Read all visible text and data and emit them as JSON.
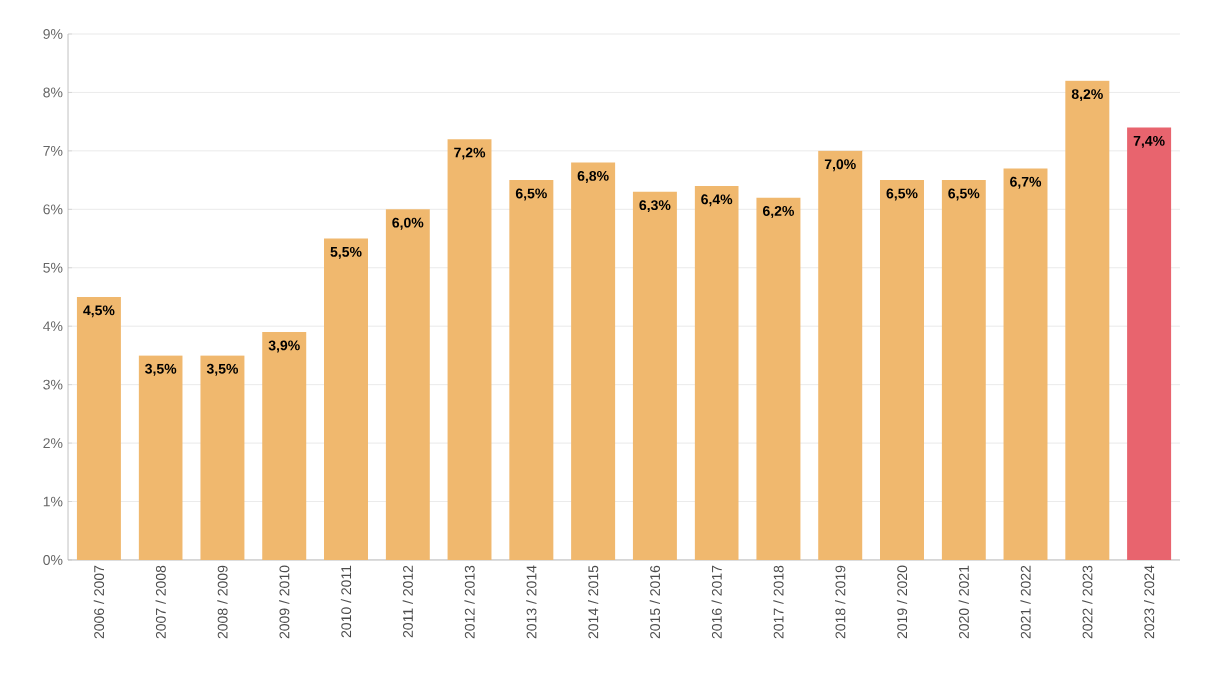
{
  "chart_data": {
    "type": "bar",
    "categories": [
      "2006 / 2007",
      "2007 / 2008",
      "2008 / 2009",
      "2009 / 2010",
      "2010 / 2011",
      "2011 / 2012",
      "2012 / 2013",
      "2013 / 2014",
      "2014 / 2015",
      "2015 / 2016",
      "2016 / 2017",
      "2017 / 2018",
      "2018 / 2019",
      "2019 / 2020",
      "2020 / 2021",
      "2021 / 2022",
      "2022 / 2023",
      "2023 / 2024"
    ],
    "values": [
      4.5,
      3.5,
      3.5,
      3.9,
      5.5,
      6.0,
      7.2,
      6.5,
      6.8,
      6.3,
      6.4,
      6.2,
      7.0,
      6.5,
      6.5,
      6.7,
      8.2,
      7.4
    ],
    "value_labels": [
      "4,5%",
      "3,5%",
      "3,5%",
      "3,9%",
      "5,5%",
      "6,0%",
      "7,2%",
      "6,5%",
      "6,8%",
      "6,3%",
      "6,4%",
      "6,2%",
      "7,0%",
      "6,5%",
      "6,5%",
      "6,7%",
      "8,2%",
      "7,4%"
    ],
    "colors": [
      "#f0b86e",
      "#f0b86e",
      "#f0b86e",
      "#f0b86e",
      "#f0b86e",
      "#f0b86e",
      "#f0b86e",
      "#f0b86e",
      "#f0b86e",
      "#f0b86e",
      "#f0b86e",
      "#f0b86e",
      "#f0b86e",
      "#f0b86e",
      "#f0b86e",
      "#f0b86e",
      "#f0b86e",
      "#e8646e"
    ],
    "ylim": [
      0,
      9
    ],
    "yticks": [
      {
        "value": 0,
        "label": "0%"
      },
      {
        "value": 1,
        "label": "1%"
      },
      {
        "value": 2,
        "label": "2%"
      },
      {
        "value": 3,
        "label": "3%"
      },
      {
        "value": 4,
        "label": "4%"
      },
      {
        "value": 5,
        "label": "5%"
      },
      {
        "value": 6,
        "label": "6%"
      },
      {
        "value": 7,
        "label": "7%"
      },
      {
        "value": 8,
        "label": "8%"
      },
      {
        "value": 9,
        "label": "9%"
      }
    ],
    "grid": "y"
  }
}
